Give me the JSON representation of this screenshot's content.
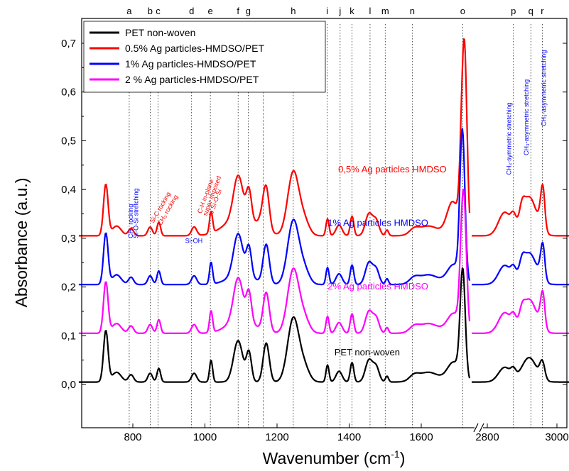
{
  "chart_data": {
    "type": "line",
    "xlabel": "Wavenumber (cm",
    "xlabel_sup": "-1",
    "xlabel_close": ")",
    "ylabel": "Absorbance (a.u.)",
    "ylim": [
      -0.06,
      0.76
    ],
    "y_ticks": [
      "0,0",
      "0,1",
      "0,2",
      "0,3",
      "0,4",
      "0,5",
      "0,6",
      "0,7"
    ],
    "y_tick_values": [
      0,
      0.1,
      0.2,
      0.3,
      0.4,
      0.5,
      0.6,
      0.7
    ],
    "x_segments": [
      {
        "range": [
          650,
          1730
        ],
        "ticks": [
          800,
          1000,
          1200,
          1400,
          1600
        ]
      },
      {
        "range": [
          2760,
          3050
        ],
        "ticks": [
          2800,
          3000
        ]
      }
    ],
    "x_tick_labels": [
      "800",
      "1000",
      "1200",
      "1400",
      "1600",
      "2800",
      "3000"
    ],
    "legend": {
      "placement": "top-left",
      "entries": [
        {
          "label": "PET non-woven",
          "color": "#000000"
        },
        {
          "label": "0.5% Ag particles-HMDSO/PET",
          "color": "#ff0000"
        },
        {
          "label": "1% Ag particles-HMDSO/PET",
          "color": "#0000ff"
        },
        {
          "label": "2 % Ag particles-HMDSO/PET",
          "color": "#ff00ff"
        }
      ]
    },
    "peak_markers": [
      {
        "label": "a",
        "x": 790
      },
      {
        "label": "b",
        "x": 848
      },
      {
        "label": "c",
        "x": 870
      },
      {
        "label": "d",
        "x": 963
      },
      {
        "label": "e",
        "x": 1015
      },
      {
        "label": "f",
        "x": 1092
      },
      {
        "label": "g",
        "x": 1120
      },
      {
        "label": "h",
        "x": 1245
      },
      {
        "label": "i",
        "x": 1339
      },
      {
        "label": "j",
        "x": 1375
      },
      {
        "label": "k",
        "x": 1408
      },
      {
        "label": "l",
        "x": 1458
      },
      {
        "label": "m",
        "x": 1500
      },
      {
        "label": "n",
        "x": 1575
      },
      {
        "label": "o",
        "x": 1715
      },
      {
        "label": "p",
        "x": 2875
      },
      {
        "label": "q",
        "x": 2925
      },
      {
        "label": "r",
        "x": 2958
      }
    ],
    "red_dashed_x": 1162,
    "series": [
      {
        "name": "PET non-woven",
        "color": "#000000",
        "offset": 0.0,
        "scale": 1.0
      },
      {
        "name": "0.5% Ag particles-HMDSO/PET",
        "color": "#ff0000",
        "offset": 0.3,
        "scale": 1.0
      },
      {
        "name": "1% Ag particles-HMDSO/PET",
        "color": "#0000ff",
        "offset": 0.2,
        "scale": 1.0
      },
      {
        "name": "2 % Ag particles-HMDSO/PET",
        "color": "#ff00ff",
        "offset": 0.1,
        "scale": 1.0
      }
    ],
    "series_labels": [
      {
        "text": "0,5% Ag particles HMDSO",
        "color": "#ff0000",
        "x": 1520,
        "y": 0.435
      },
      {
        "text": "1% Ag particles HMDSO",
        "color": "#0000ff",
        "x": 1480,
        "y": 0.325
      },
      {
        "text": "2% Ag particles HMDSO",
        "color": "#ff00ff",
        "x": 1480,
        "y": 0.195
      },
      {
        "text": "PET non-woven",
        "color": "#000000",
        "x": 1450,
        "y": 0.06
      }
    ],
    "annotations": [
      {
        "text": "CH₃ rocking",
        "color": "#0000ff",
        "x": 800,
        "y": 0.3,
        "rot": -90
      },
      {
        "text": "Si-O-Si stretching",
        "color": "#0000ff",
        "x": 815,
        "y": 0.3,
        "rot": -90
      },
      {
        "text": "Si-C rocking",
        "color": "#ff0000",
        "x": 857,
        "y": 0.33,
        "rot": -60
      },
      {
        "text": "CH₃ rocking",
        "color": "#ff0000",
        "x": 878,
        "y": 0.325,
        "rot": -60
      },
      {
        "text": "C-H in-plane",
        "color": "#ff0000",
        "x": 990,
        "y": 0.35,
        "rot": -70
      },
      {
        "text": "super imposed",
        "color": "#ff0000",
        "x": 1005,
        "y": 0.345,
        "rot": -70
      },
      {
        "text": "to Si-O-Si",
        "color": "#ff0000",
        "x": 1020,
        "y": 0.345,
        "rot": -70
      },
      {
        "text": "Si-OH",
        "color": "#0000ff",
        "x": 945,
        "y": 0.29,
        "rot": 0
      },
      {
        "text": "CH₃-symmetric stretching",
        "color": "#0000ff",
        "x": 2868,
        "y": 0.43,
        "rot": -90
      },
      {
        "text": "CH₃-asymmetric stretching",
        "color": "#0000ff",
        "x": 2918,
        "y": 0.47,
        "rot": -90
      },
      {
        "text": "CH₃-asymmetric stretching",
        "color": "#0000ff",
        "x": 2968,
        "y": 0.53,
        "rot": -90
      }
    ]
  }
}
